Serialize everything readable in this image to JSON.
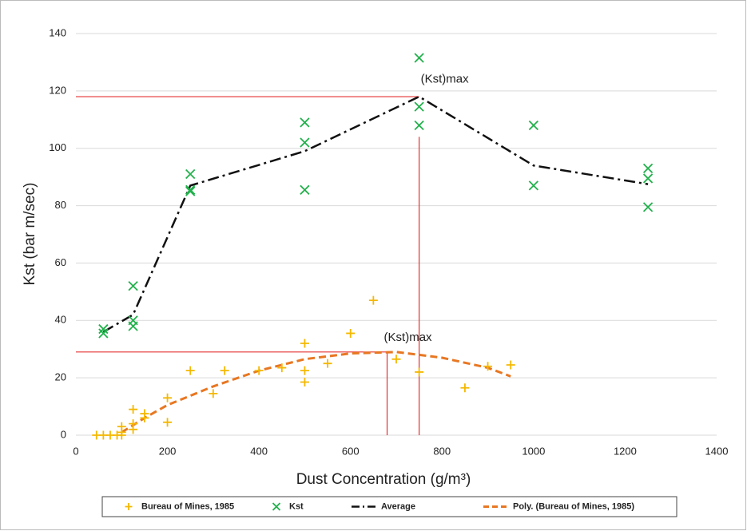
{
  "chart_data": {
    "type": "scatter",
    "x_label": "Dust Concentration (g/m³)",
    "y_label": "Kst (bar m/sec)",
    "xlim": [
      0,
      1400
    ],
    "xticks": [
      0,
      200,
      400,
      600,
      800,
      1000,
      1200,
      1400
    ],
    "ylim": [
      0,
      140
    ],
    "yticks": [
      0,
      20,
      40,
      60,
      80,
      100,
      120,
      140
    ],
    "grid": true,
    "legend": "bottom",
    "series": [
      {
        "name": "Bureau of Mines, 1985",
        "color": "#f5b800",
        "marker": "+",
        "x": [
          45,
          60,
          75,
          90,
          100,
          100,
          100,
          125,
          125,
          125,
          150,
          150,
          200,
          200,
          250,
          300,
          325,
          400,
          450,
          500,
          500,
          500,
          550,
          600,
          650,
          700,
          750,
          850,
          900,
          950
        ],
        "values": [
          0,
          0,
          0,
          0,
          0,
          1,
          3,
          9,
          2,
          4,
          6,
          7.5,
          13,
          4.5,
          22.5,
          14.5,
          22.5,
          22.5,
          23.5,
          32,
          22.5,
          18.5,
          25,
          35.5,
          47,
          26.5,
          22,
          16.5,
          24,
          24.5
        ]
      },
      {
        "name": "Kst",
        "color": "#22b14c",
        "marker": "x",
        "x": [
          60,
          60,
          125,
          125,
          125,
          250,
          250,
          250,
          500,
          500,
          500,
          750,
          750,
          750,
          1000,
          1000,
          1250,
          1250,
          1250
        ],
        "values": [
          37,
          35.5,
          52,
          40,
          38,
          91,
          85.5,
          85,
          109,
          102,
          85.5,
          131.5,
          114.5,
          108,
          108,
          87,
          93,
          89.5,
          79.5
        ]
      },
      {
        "name": "Average",
        "color": "#111111",
        "line": "dash-dot",
        "x": [
          60,
          125,
          250,
          500,
          750,
          1000,
          1250
        ],
        "values": [
          36,
          42,
          87,
          99,
          118,
          94,
          87.5
        ]
      },
      {
        "name": "Poly. (Bureau of Mines, 1985)",
        "color": "#e87722",
        "line": "dash",
        "x": [
          100,
          150,
          200,
          300,
          400,
          500,
          600,
          700,
          800,
          900,
          950
        ],
        "values": [
          1,
          6,
          10.5,
          17,
          22.5,
          26.5,
          28.5,
          29,
          27,
          23.5,
          20.5
        ]
      }
    ],
    "reference_lines": [
      {
        "color": "#e53030",
        "x": [
          0,
          750
        ],
        "values": [
          118,
          118
        ]
      },
      {
        "color": "#e53030",
        "x": [
          750,
          750
        ],
        "values": [
          0,
          104
        ]
      },
      {
        "color": "#e53030",
        "x": [
          0,
          680
        ],
        "values": [
          29,
          29
        ]
      },
      {
        "color": "#e53030",
        "x": [
          680,
          680
        ],
        "values": [
          0,
          29
        ]
      }
    ],
    "annotations": [
      "(Kst)max",
      "(Kst)max"
    ]
  }
}
